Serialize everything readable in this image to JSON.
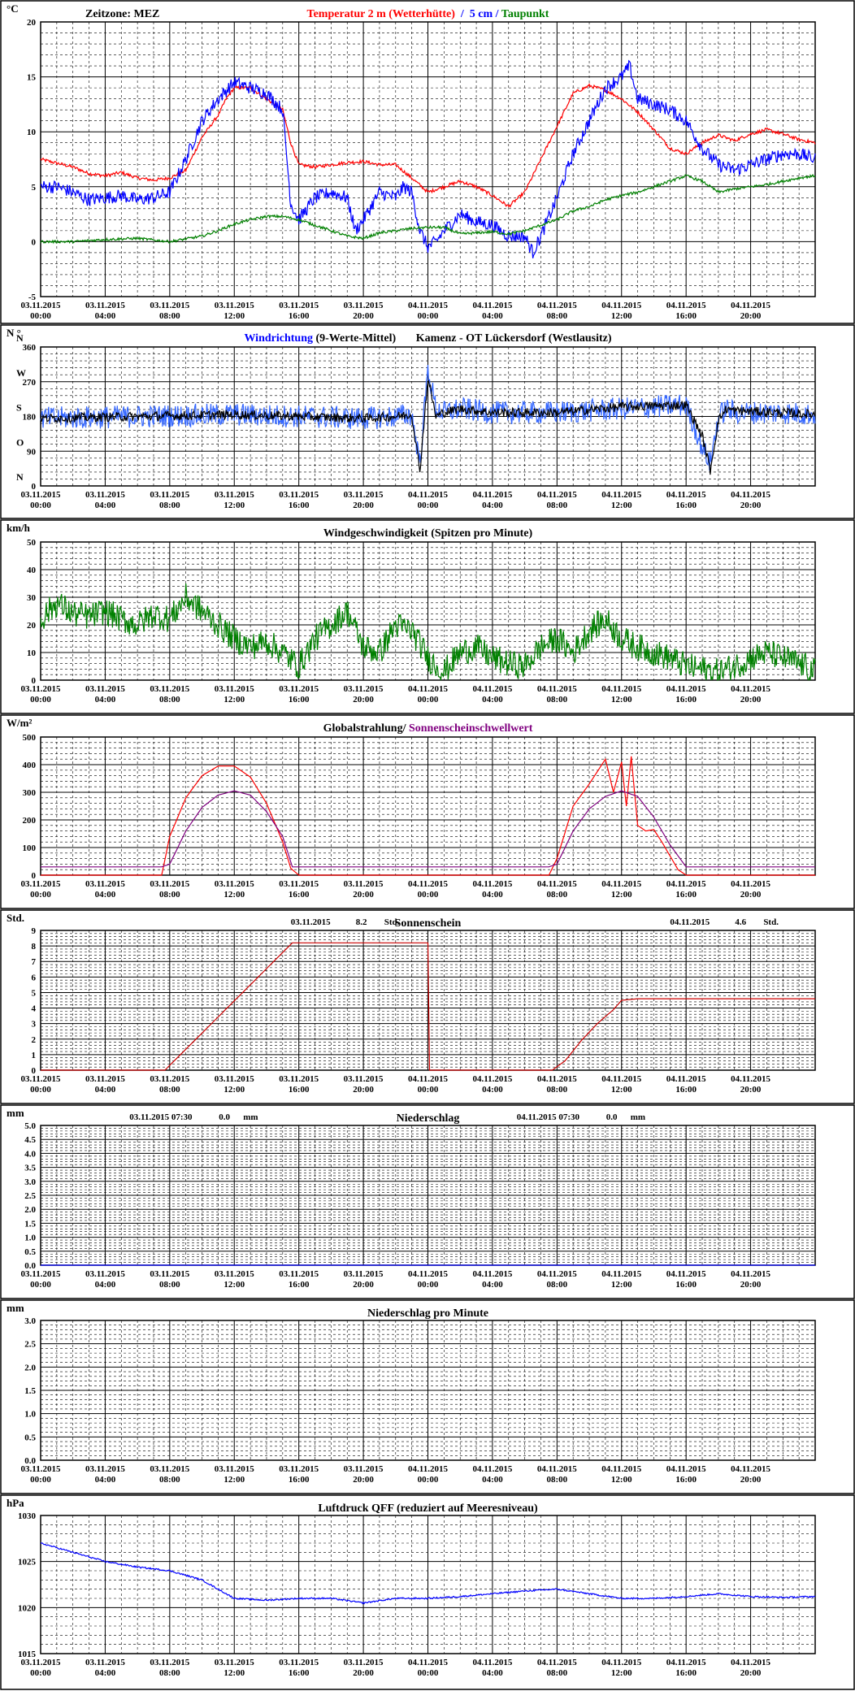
{
  "x_axis": {
    "tick_labels": [
      [
        "03.11.2015",
        "00:00"
      ],
      [
        "03.11.2015",
        "04:00"
      ],
      [
        "03.11.2015",
        "08:00"
      ],
      [
        "03.11.2015",
        "12:00"
      ],
      [
        "03.11.2015",
        "16:00"
      ],
      [
        "03.11.2015",
        "20:00"
      ],
      [
        "04.11.2015",
        "00:00"
      ],
      [
        "04.11.2015",
        "04:00"
      ],
      [
        "04.11.2015",
        "08:00"
      ],
      [
        "04.11.2015",
        "12:00"
      ],
      [
        "04.11.2015",
        "16:00"
      ],
      [
        "04.11.2015",
        "20:00"
      ]
    ],
    "hours_total": 48,
    "label_interval_hours": 4
  },
  "chart_data": [
    {
      "id": "temperature",
      "type": "line",
      "unit": "°C",
      "header_left": "Zeitzone: MEZ",
      "title_parts": [
        {
          "text": "Temperatur 2 m (Wetterhütte)",
          "color": "#ff0000"
        },
        {
          "text": "  /  ",
          "color": "#0000ff"
        },
        {
          "text": "5 cm",
          "color": "#0000ff"
        },
        {
          "text": " / ",
          "color": "#0000ff"
        },
        {
          "text": "Taupunkt",
          "color": "#008000"
        }
      ],
      "ylim": [
        -5,
        20
      ],
      "yticks": [
        -5,
        0,
        5,
        10,
        15,
        20
      ],
      "series": [
        {
          "name": "Temperatur 2 m (Wetterhütte)",
          "color": "#ff0000",
          "noise": 0.15,
          "x": [
            0,
            2,
            3,
            4,
            5,
            6,
            7,
            8,
            9,
            10,
            11,
            11.5,
            12,
            13,
            14,
            15,
            15.5,
            16,
            17,
            18,
            19,
            20,
            21,
            22,
            23,
            24,
            25,
            26,
            27,
            28,
            29,
            30,
            31,
            32,
            33,
            34,
            35,
            36,
            37,
            38,
            39,
            40,
            41,
            42,
            43,
            44,
            45,
            46,
            47,
            48
          ],
          "y": [
            7.5,
            6.8,
            6.2,
            6.0,
            6.3,
            5.8,
            5.6,
            5.8,
            6.5,
            9.5,
            11.5,
            13.0,
            14.0,
            14.0,
            13.0,
            12.0,
            9.0,
            7.0,
            6.8,
            7.0,
            7.2,
            7.3,
            7.0,
            7.0,
            5.8,
            4.5,
            5.0,
            5.5,
            5.0,
            4.2,
            3.2,
            4.5,
            7.5,
            10.5,
            13.5,
            14.2,
            13.8,
            13.0,
            11.8,
            10.2,
            8.5,
            8.0,
            9.0,
            9.7,
            9.2,
            9.8,
            10.2,
            9.8,
            9.3,
            9.0
          ]
        },
        {
          "name": "5 cm",
          "color": "#0000ff",
          "noise": 0.6,
          "x": [
            0,
            1,
            2,
            3,
            4,
            5,
            6,
            7,
            8,
            8.5,
            9,
            10,
            11,
            12,
            13,
            14,
            15,
            15.5,
            16,
            17,
            18,
            19,
            19.5,
            20,
            21,
            22,
            22.5,
            23,
            23.5,
            24,
            24.5,
            25,
            26,
            27,
            28,
            29,
            30,
            30.5,
            31,
            32,
            33,
            34,
            35,
            36,
            36.5,
            37,
            38,
            39,
            40,
            41,
            42,
            43,
            44,
            45,
            46,
            47,
            48
          ],
          "y": [
            5.0,
            5.0,
            4.5,
            3.8,
            4.0,
            4.2,
            3.8,
            4.0,
            4.5,
            6.0,
            7.5,
            11.0,
            13.0,
            14.5,
            14.0,
            13.5,
            12.0,
            3.5,
            2.0,
            4.0,
            4.5,
            4.0,
            1.0,
            2.0,
            4.5,
            4.0,
            5.0,
            4.5,
            1.0,
            -0.5,
            0.0,
            1.0,
            2.5,
            1.8,
            1.5,
            0.5,
            0.5,
            -1.0,
            0.5,
            4.0,
            8.0,
            11.0,
            14.0,
            15.0,
            16.0,
            13.0,
            12.5,
            12.0,
            11.0,
            8.5,
            7.0,
            6.5,
            7.0,
            7.5,
            8.0,
            8.0,
            7.5
          ]
        },
        {
          "name": "Taupunkt",
          "color": "#008000",
          "noise": 0.12,
          "x": [
            0,
            2,
            4,
            6,
            8,
            10,
            11,
            12,
            13,
            14,
            15,
            16,
            17,
            18,
            19,
            20,
            21,
            22,
            23,
            24,
            25,
            26,
            27,
            28,
            29,
            30,
            31,
            32,
            33,
            34,
            35,
            36,
            37,
            38,
            39,
            40,
            41,
            42,
            43,
            44,
            45,
            46,
            47,
            48
          ],
          "y": [
            0.0,
            0.0,
            0.2,
            0.3,
            0.0,
            0.5,
            1.0,
            1.6,
            2.0,
            2.3,
            2.3,
            2.0,
            1.5,
            1.0,
            0.5,
            0.3,
            0.8,
            1.0,
            1.2,
            1.3,
            1.3,
            0.7,
            0.8,
            0.9,
            0.7,
            1.0,
            1.5,
            2.0,
            2.8,
            3.2,
            3.8,
            4.2,
            4.5,
            5.0,
            5.5,
            6.0,
            5.5,
            4.5,
            4.8,
            5.0,
            5.2,
            5.5,
            5.8,
            6.0
          ]
        }
      ]
    },
    {
      "id": "wind_direction",
      "type": "line",
      "unit": "N °",
      "title_parts": [
        {
          "text": "Windrichtung",
          "color": "#0000ff"
        },
        {
          "text": " (9-Werte-Mittel)",
          "color": "#000000"
        },
        {
          "text": "       Kamenz - OT Lückersdorf (Westlausitz)",
          "color": "#000000"
        }
      ],
      "ylim": [
        0,
        360
      ],
      "yticks": [
        0,
        90,
        180,
        270,
        360
      ],
      "compass_labels": [
        [
          "N",
          360
        ],
        [
          "W",
          270
        ],
        [
          "S",
          180
        ],
        [
          "O",
          90
        ],
        [
          "N",
          0
        ]
      ],
      "series": [
        {
          "name": "Windrichtung raw",
          "color": "#3366ff",
          "noise": 30,
          "x": [
            0,
            6,
            12,
            16,
            20,
            22,
            23,
            23.5,
            24,
            24.5,
            25,
            26,
            28,
            32,
            36,
            40,
            41,
            41.5,
            42,
            42.5,
            43,
            46,
            48
          ],
          "y": [
            175,
            180,
            185,
            180,
            175,
            180,
            185,
            60,
            300,
            200,
            190,
            200,
            190,
            190,
            200,
            210,
            100,
            60,
            180,
            200,
            190,
            190,
            185
          ]
        },
        {
          "name": "Windrichtung Mittel",
          "color": "#000000",
          "noise": 12,
          "x": [
            0,
            6,
            12,
            16,
            20,
            22,
            23,
            23.5,
            24,
            24.5,
            25,
            26,
            28,
            32,
            36,
            40,
            41,
            41.5,
            42,
            42.5,
            43,
            46,
            48
          ],
          "y": [
            175,
            180,
            185,
            180,
            175,
            180,
            185,
            40,
            280,
            180,
            190,
            200,
            190,
            190,
            205,
            210,
            130,
            40,
            170,
            200,
            195,
            190,
            185
          ]
        }
      ]
    },
    {
      "id": "wind_speed",
      "type": "line",
      "unit": "km/h",
      "title_parts": [
        {
          "text": "Windgeschwindigkeit (Spitzen pro Minute)",
          "color": "#000000"
        }
      ],
      "ylim": [
        0,
        50
      ],
      "yticks": [
        0,
        10,
        20,
        30,
        40,
        50
      ],
      "series": [
        {
          "name": "Windgeschwindigkeit",
          "color": "#008000",
          "noise": 5,
          "x": [
            0,
            1,
            2,
            3,
            4,
            5,
            6,
            7,
            8,
            9,
            10,
            11,
            12,
            13,
            14,
            15,
            16,
            17,
            18,
            19,
            20,
            21,
            22,
            23,
            24,
            25,
            26,
            27,
            28,
            29,
            30,
            31,
            32,
            33,
            34,
            35,
            36,
            37,
            38,
            39,
            40,
            41,
            42,
            43,
            44,
            45,
            46,
            47,
            48
          ],
          "y": [
            22,
            28,
            24,
            23,
            25,
            22,
            20,
            24,
            22,
            30,
            25,
            20,
            15,
            12,
            14,
            10,
            5,
            15,
            20,
            25,
            12,
            10,
            20,
            18,
            8,
            3,
            10,
            12,
            8,
            6,
            5,
            12,
            15,
            10,
            18,
            22,
            15,
            12,
            10,
            8,
            5,
            4,
            3,
            5,
            8,
            10,
            8,
            6,
            3
          ]
        }
      ]
    },
    {
      "id": "radiation",
      "type": "line",
      "unit": "W/m²",
      "title_parts": [
        {
          "text": "Globalstrahlung/ ",
          "color": "#000000"
        },
        {
          "text": "Sonnenscheinschwellwert",
          "color": "#800080"
        }
      ],
      "ylim": [
        0,
        500
      ],
      "yticks": [
        0,
        100,
        200,
        300,
        400,
        500
      ],
      "series": [
        {
          "name": "Globalstrahlung",
          "color": "#ff0000",
          "noise": 0,
          "x": [
            0,
            7.5,
            8,
            9,
            10,
            11,
            12,
            13,
            14,
            15,
            15.5,
            16,
            24,
            31.5,
            32,
            33,
            34,
            35,
            35.5,
            36,
            36.3,
            36.6,
            37,
            37.5,
            38,
            38.5,
            39,
            39.5,
            40,
            48
          ],
          "y": [
            0,
            0,
            140,
            280,
            360,
            395,
            395,
            355,
            260,
            120,
            25,
            0,
            0,
            0,
            60,
            250,
            330,
            420,
            300,
            410,
            250,
            430,
            180,
            160,
            165,
            120,
            70,
            20,
            0,
            0
          ]
        },
        {
          "name": "Sonnenscheinschwellwert",
          "color": "#800080",
          "noise": 0,
          "x": [
            0,
            7.5,
            8,
            9,
            10,
            11,
            12,
            13,
            14,
            15,
            15.6,
            16,
            31.5,
            32,
            33,
            34,
            35,
            36,
            37,
            38,
            39,
            40,
            48
          ],
          "y": [
            30,
            30,
            40,
            160,
            245,
            290,
            305,
            290,
            230,
            140,
            30,
            30,
            30,
            40,
            160,
            240,
            285,
            305,
            285,
            210,
            110,
            30,
            30
          ]
        }
      ]
    },
    {
      "id": "sunshine",
      "type": "line",
      "unit": "Std.",
      "title_parts": [
        {
          "text": "Sonnenschein",
          "color": "#000000"
        }
      ],
      "annotations": [
        {
          "date": "03.11.2015",
          "value": "8.2",
          "unit": "Std.",
          "at_hour": 15.5
        },
        {
          "date": "04.11.2015",
          "value": "4.6",
          "unit": "Std.",
          "at_hour": 39
        }
      ],
      "ylim": [
        0,
        9
      ],
      "yticks": [
        0,
        1,
        2,
        3,
        4,
        5,
        6,
        7,
        8,
        9
      ],
      "series": [
        {
          "name": "Sonnenschein",
          "color": "#cc0000",
          "noise": 0,
          "x": [
            0,
            7.7,
            15.6,
            24,
            24.001,
            31.7,
            32.5,
            33.5,
            34.5,
            35.5,
            36,
            37,
            48
          ],
          "y": [
            0,
            0,
            8.2,
            8.2,
            0,
            0,
            0.6,
            1.9,
            3.0,
            3.9,
            4.5,
            4.6,
            4.6
          ]
        }
      ]
    },
    {
      "id": "precipitation",
      "type": "line",
      "unit": "mm",
      "title_parts": [
        {
          "text": "Niederschlag",
          "color": "#000000"
        }
      ],
      "annotations": [
        {
          "date": "03.11.2015 07:30",
          "value": "0.0",
          "unit": "mm",
          "at_hour": 5.5
        },
        {
          "date": "04.11.2015 07:30",
          "value": "0.0",
          "unit": "mm",
          "at_hour": 29.5
        }
      ],
      "ylim": [
        0,
        5
      ],
      "yticks": [
        0,
        0.5,
        1,
        1.5,
        2,
        2.5,
        3,
        3.5,
        4,
        4.5,
        5
      ],
      "series": [
        {
          "name": "Niederschlag",
          "color": "#0000ff",
          "noise": 0,
          "x": [
            0,
            48
          ],
          "y": [
            0,
            0
          ]
        }
      ]
    },
    {
      "id": "precipitation_per_minute",
      "type": "line",
      "unit": "mm",
      "title_parts": [
        {
          "text": "Niederschlag pro Minute",
          "color": "#000000"
        }
      ],
      "ylim": [
        0,
        3
      ],
      "yticks": [
        0,
        0.5,
        1,
        1.5,
        2,
        2.5,
        3
      ],
      "series": []
    },
    {
      "id": "pressure",
      "type": "line",
      "unit": "hPa",
      "title_parts": [
        {
          "text": "Luftdruck QFF (reduziert auf Meeresniveau)",
          "color": "#000000"
        }
      ],
      "ylim": [
        1015,
        1030
      ],
      "yticks": [
        1015,
        1020,
        1025,
        1030
      ],
      "series": [
        {
          "name": "Luftdruck QFF",
          "color": "#0000ff",
          "noise": 0.08,
          "x": [
            0,
            2,
            4,
            6,
            8,
            10,
            12,
            14,
            16,
            18,
            20,
            22,
            24,
            26,
            28,
            30,
            32,
            34,
            36,
            38,
            40,
            42,
            44,
            46,
            48
          ],
          "y": [
            1027,
            1026,
            1025,
            1024.4,
            1024,
            1023,
            1021,
            1020.8,
            1021,
            1021,
            1020.5,
            1021,
            1021,
            1021.2,
            1021.5,
            1021.8,
            1022,
            1021.5,
            1021,
            1021,
            1021.2,
            1021.5,
            1021.2,
            1021.1,
            1021.2
          ]
        }
      ]
    }
  ]
}
